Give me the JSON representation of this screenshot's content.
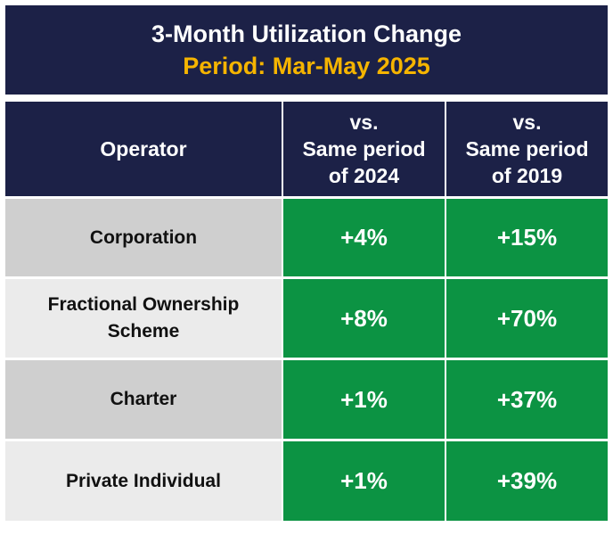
{
  "title": {
    "line1": "3-Month Utilization Change",
    "line2": "Period: Mar-May 2025"
  },
  "colors": {
    "header_bg": "#1c2147",
    "title_accent": "#f5b400",
    "positive_bg": "#0c9343",
    "row_dark": "#cfcfcf",
    "row_light": "#ebebeb"
  },
  "chart_data": {
    "type": "table",
    "title": "3-Month Utilization Change",
    "subtitle": "Period: Mar-May 2025",
    "columns": [
      {
        "label": "Operator"
      },
      {
        "label_lines": [
          "vs.",
          "Same period",
          "of 2024"
        ]
      },
      {
        "label_lines": [
          "vs.",
          "Same period",
          "of 2019"
        ]
      }
    ],
    "rows": [
      {
        "operator": "Corporation",
        "vs2024": "+4%",
        "vs2019": "+15%"
      },
      {
        "operator": "Fractional Ownership Scheme",
        "vs2024": "+8%",
        "vs2019": "+70%"
      },
      {
        "operator": "Charter",
        "vs2024": "+1%",
        "vs2019": "+37%"
      },
      {
        "operator": "Private Individual",
        "vs2024": "+1%",
        "vs2019": "+39%"
      }
    ],
    "values_vs_2024_pct": [
      4,
      8,
      1,
      1
    ],
    "values_vs_2019_pct": [
      15,
      70,
      37,
      39
    ]
  }
}
